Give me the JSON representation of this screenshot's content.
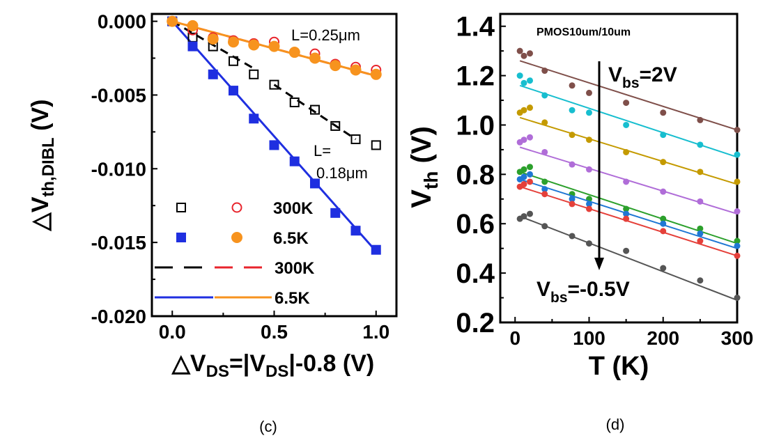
{
  "chart_data": [
    {
      "type": "scatter",
      "panel_label": "(c)",
      "ylabel_sym": "△V",
      "ylabel_sub": "th,DIBL",
      "ylabel_unit": " (V)",
      "xlabel_pre": "△V",
      "xlabel_sub1": "DS",
      "xlabel_mid": "=|V",
      "xlabel_sub2": "DS",
      "xlabel_post": "|-0.8 (V)",
      "xlim": [
        -0.1,
        1.1
      ],
      "ylim": [
        -0.02,
        0.0005
      ],
      "xticks": [
        "0.0",
        "0.5",
        "1.0"
      ],
      "xtick_values": [
        0,
        0.5,
        1.0
      ],
      "yticks": [
        "0.000",
        "-0.005",
        "-0.010",
        "-0.015",
        "-0.020"
      ],
      "ytick_values": [
        0,
        -0.005,
        -0.01,
        -0.015,
        -0.02
      ],
      "annotations": [
        "L=0.25μm",
        "L=",
        "0.18μm"
      ],
      "legend": {
        "markers_300K": "300K",
        "markers_6_5K": "6.5K",
        "lines_300K": "300K",
        "lines_6_5K": "6.5K"
      },
      "series": [
        {
          "group": "L=0.18μm",
          "temp": "300K",
          "marker": "open-square",
          "color": "#000000",
          "x": [
            0,
            0.1,
            0.2,
            0.3,
            0.4,
            0.5,
            0.6,
            0.7,
            0.8,
            0.9,
            1.0
          ],
          "y": [
            0,
            -0.0011,
            -0.0017,
            -0.0027,
            -0.0036,
            -0.0043,
            -0.0055,
            -0.006,
            -0.0071,
            -0.008,
            -0.0084
          ]
        },
        {
          "group": "L=0.25μm",
          "temp": "300K",
          "marker": "open-circle",
          "color": "#e8242c",
          "x": [
            0,
            0.1,
            0.2,
            0.3,
            0.4,
            0.5,
            0.6,
            0.7,
            0.8,
            0.9,
            1.0
          ],
          "y": [
            0,
            -0.0006,
            -0.0011,
            -0.0013,
            -0.0015,
            -0.0014,
            -0.0021,
            -0.0022,
            -0.0029,
            -0.0031,
            -0.0033
          ]
        },
        {
          "group": "L=0.18μm",
          "temp": "6.5K",
          "marker": "filled-square",
          "color": "#1f2fe0",
          "x": [
            0,
            0.1,
            0.2,
            0.3,
            0.4,
            0.5,
            0.6,
            0.7,
            0.8,
            0.9,
            1.0
          ],
          "y": [
            0,
            -0.0017,
            -0.0036,
            -0.0047,
            -0.0066,
            -0.0084,
            -0.0095,
            -0.011,
            -0.013,
            -0.0142,
            -0.0155
          ]
        },
        {
          "group": "L=0.25μm",
          "temp": "6.5K",
          "marker": "filled-circle",
          "color": "#f7931e",
          "x": [
            0,
            0.1,
            0.2,
            0.3,
            0.4,
            0.5,
            0.6,
            0.7,
            0.8,
            0.9,
            1.0
          ],
          "y": [
            0,
            -0.0003,
            -0.0012,
            -0.0014,
            -0.0016,
            -0.0017,
            -0.0021,
            -0.0025,
            -0.003,
            -0.0033,
            -0.0036
          ]
        }
      ],
      "fits": [
        {
          "temp": "300K",
          "style": "dashed",
          "color": "#000000",
          "x": [
            0,
            0.4
          ],
          "y": [
            0,
            -0.0032
          ]
        },
        {
          "temp": "300K",
          "style": "dashed",
          "color": "#000000",
          "x": [
            0.5,
            0.9
          ],
          "y": [
            -0.0043,
            -0.008
          ]
        },
        {
          "temp": "300K",
          "style": "dashed",
          "color": "#e8242c",
          "x": [
            0,
            1.0
          ],
          "y": [
            0,
            -0.0037
          ]
        },
        {
          "temp": "6.5K",
          "style": "solid",
          "color": "#1f2fe0",
          "x": [
            0,
            1.0
          ],
          "y": [
            0,
            -0.0156
          ]
        },
        {
          "temp": "6.5K",
          "style": "solid",
          "color": "#f7931e",
          "x": [
            0,
            1.0
          ],
          "y": [
            0,
            -0.0037
          ]
        }
      ]
    },
    {
      "type": "scatter",
      "panel_label": "(d)",
      "title": "PMOS10um/10um",
      "ylabel_main": "V",
      "ylabel_sub": "th",
      "ylabel_unit": " (V)",
      "xlabel": "T (K)",
      "xlim": [
        -20,
        300
      ],
      "ylim": [
        0.2,
        1.45
      ],
      "xticks": [
        "0",
        "100",
        "200",
        "300"
      ],
      "xtick_values": [
        0,
        100,
        200,
        300
      ],
      "yticks": [
        "0.2",
        "0.4",
        "0.6",
        "0.8",
        "1.0",
        "1.2",
        "1.4"
      ],
      "ytick_values": [
        0.2,
        0.4,
        0.6,
        0.8,
        1.0,
        1.2,
        1.4
      ],
      "annot_top_main": "V",
      "annot_top_sub": "bs",
      "annot_top_val": "=2V",
      "annot_bot_main": "V",
      "annot_bot_sub": "bs",
      "annot_bot_val": "=-0.5V",
      "x": [
        6.5,
        12,
        20,
        40,
        77,
        100,
        150,
        200,
        250,
        300
      ],
      "series": [
        {
          "color": "#7f4f4a",
          "y": [
            1.3,
            1.28,
            1.29,
            1.22,
            1.16,
            1.13,
            1.09,
            1.05,
            1.02,
            0.98
          ],
          "fit": [
            1.26,
            0.98
          ]
        },
        {
          "color": "#17becf",
          "y": [
            1.2,
            1.17,
            1.18,
            1.12,
            1.06,
            1.05,
            1.0,
            0.96,
            0.92,
            0.88
          ],
          "fit": [
            1.16,
            0.87
          ]
        },
        {
          "color": "#c49a00",
          "y": [
            1.05,
            1.06,
            1.07,
            1.01,
            0.96,
            0.94,
            0.89,
            0.85,
            0.81,
            0.77
          ],
          "fit": [
            1.03,
            0.76
          ]
        },
        {
          "color": "#b06dd8",
          "y": [
            0.93,
            0.94,
            0.95,
            0.89,
            0.84,
            0.82,
            0.77,
            0.73,
            0.69,
            0.65
          ],
          "fit": [
            0.91,
            0.64
          ]
        },
        {
          "color": "#2ca02c",
          "y": [
            0.81,
            0.82,
            0.83,
            0.77,
            0.72,
            0.7,
            0.66,
            0.62,
            0.58,
            0.53
          ],
          "fit": [
            0.81,
            0.52
          ]
        },
        {
          "color": "#1f77d4",
          "y": [
            0.78,
            0.79,
            0.8,
            0.74,
            0.7,
            0.68,
            0.64,
            0.6,
            0.56,
            0.51
          ],
          "fit": [
            0.78,
            0.5
          ]
        },
        {
          "color": "#e5403a",
          "y": [
            0.75,
            0.76,
            0.77,
            0.72,
            0.68,
            0.66,
            0.62,
            0.57,
            0.53,
            0.47
          ],
          "fit": [
            0.75,
            0.47
          ]
        },
        {
          "color": "#555555",
          "y": [
            0.62,
            0.63,
            0.64,
            0.59,
            0.55,
            0.52,
            0.49,
            0.42,
            0.37,
            0.3
          ],
          "fit": [
            0.63,
            0.29
          ]
        }
      ]
    }
  ]
}
